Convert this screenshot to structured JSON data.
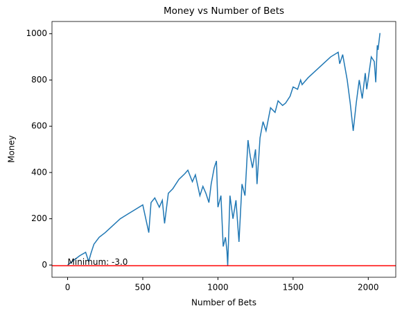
{
  "chart_data": {
    "type": "line",
    "title": "Money vs Number of Bets",
    "x_label": "Number of Bets",
    "y_label": "Money",
    "x": [
      0,
      40,
      80,
      120,
      140,
      155,
      175,
      210,
      250,
      300,
      350,
      400,
      450,
      500,
      520,
      540,
      555,
      580,
      610,
      630,
      645,
      670,
      700,
      740,
      780,
      800,
      830,
      850,
      870,
      880,
      900,
      920,
      940,
      955,
      975,
      990,
      1000,
      1020,
      1035,
      1050,
      1060,
      1065,
      1080,
      1100,
      1120,
      1140,
      1160,
      1180,
      1200,
      1215,
      1230,
      1250,
      1260,
      1280,
      1300,
      1320,
      1350,
      1380,
      1400,
      1430,
      1450,
      1480,
      1500,
      1530,
      1550,
      1560,
      1600,
      1650,
      1700,
      1750,
      1800,
      1810,
      1830,
      1860,
      1880,
      1900,
      1920,
      1940,
      1960,
      1980,
      1990,
      2020,
      2040,
      2050,
      2060,
      2065,
      2078
    ],
    "series": [
      {
        "name": "Money",
        "color": "#1f77b4",
        "values": [
          0,
          20,
          40,
          55,
          15,
          50,
          90,
          120,
          140,
          170,
          200,
          220,
          240,
          260,
          200,
          140,
          270,
          290,
          250,
          280,
          180,
          310,
          330,
          370,
          395,
          410,
          360,
          390,
          330,
          300,
          340,
          310,
          270,
          350,
          420,
          450,
          250,
          300,
          80,
          120,
          60,
          -3,
          300,
          200,
          280,
          100,
          350,
          300,
          540,
          470,
          420,
          500,
          350,
          550,
          620,
          580,
          680,
          660,
          710,
          690,
          700,
          730,
          770,
          760,
          800,
          780,
          810,
          840,
          870,
          900,
          920,
          870,
          910,
          800,
          700,
          580,
          700,
          800,
          720,
          830,
          760,
          900,
          880,
          790,
          950,
          930,
          1003
        ]
      }
    ],
    "xlim": [
      -104,
      2183
    ],
    "ylim": [
      -53,
      1053
    ],
    "xticks": [
      0,
      500,
      1000,
      1500,
      2000
    ],
    "yticks": [
      0,
      200,
      400,
      600,
      800,
      1000
    ],
    "hline": {
      "y": -3,
      "color": "red"
    },
    "annotation": {
      "text": "Minimum: -3.0",
      "x": 0,
      "y": -3
    }
  }
}
